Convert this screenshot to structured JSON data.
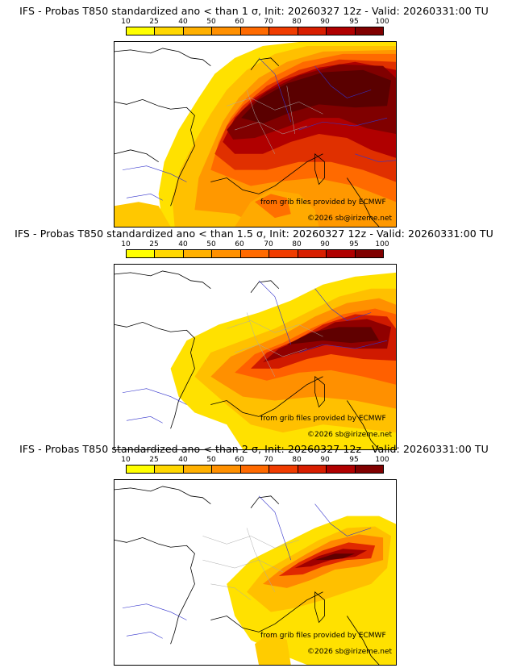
{
  "colorbar": {
    "ticks": [
      "10",
      "25",
      "40",
      "50",
      "60",
      "70",
      "80",
      "90",
      "95",
      "100"
    ],
    "colors": [
      "#ffff00",
      "#ffd700",
      "#ffb000",
      "#ff9000",
      "#ff6a00",
      "#f03c00",
      "#d81e00",
      "#b00000",
      "#800000"
    ]
  },
  "panels": [
    {
      "title": "IFS - Probas T850  standardized ano < than 1 σ, Init: 20260327 12z - Valid: 20260331:00 TU",
      "credit_source": "from grib files provided by ECMWF",
      "credit_author": "©2026 sb@irizeme.net"
    },
    {
      "title": "IFS - Probas T850  standardized ano < than 1.5 σ, Init: 20260327 12z - Valid: 20260331:00 TU",
      "credit_source": "from grib files provided by ECMWF",
      "credit_author": "©2026 sb@irizeme.net"
    },
    {
      "title": "IFS - Probas T850  standardized ano < than 2 σ, Init: 20260327 12z - Valid: 20260331:00 TU",
      "credit_source": "from grib files provided by ECMWF",
      "credit_author": "©2026 sb@irizeme.net"
    }
  ]
}
